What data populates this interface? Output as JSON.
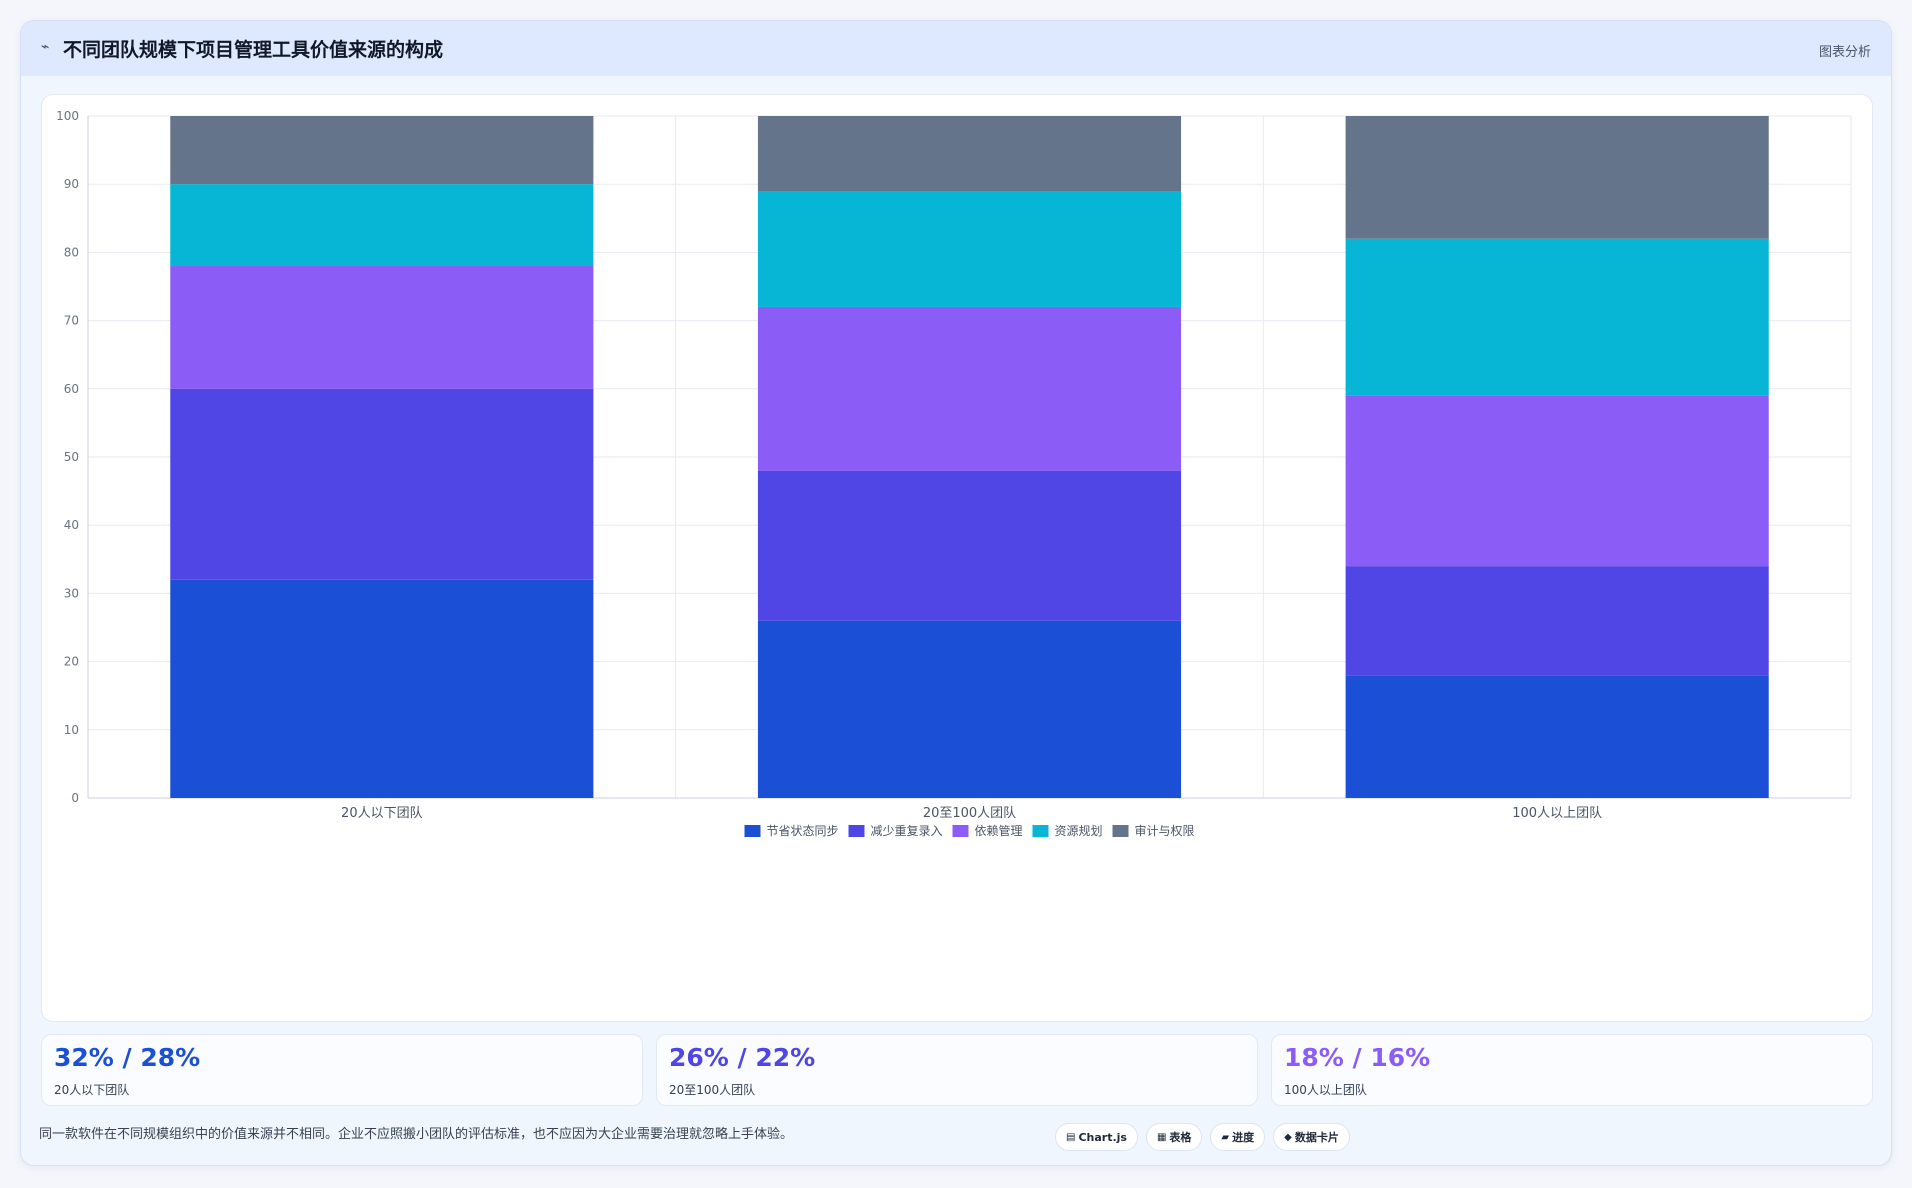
{
  "header": {
    "icon": "trend-line-icon",
    "icon_glyph": "⌁",
    "title": "不同团队规模下项目管理工具价值来源的构成",
    "tag": "图表分析"
  },
  "chart_data": {
    "type": "bar",
    "stacked": true,
    "categories": [
      "20人以下团队",
      "20至100人团队",
      "100人以上团队"
    ],
    "series": [
      {
        "name": "节省状态同步",
        "color": "#1b4fd6",
        "values": [
          32,
          26,
          18
        ]
      },
      {
        "name": "减少重复录入",
        "color": "#4f46e5",
        "values": [
          28,
          22,
          16
        ]
      },
      {
        "name": "依赖管理",
        "color": "#8b5cf6",
        "values": [
          18,
          24,
          25
        ]
      },
      {
        "name": "资源规划",
        "color": "#06b6d4",
        "values": [
          12,
          17,
          23
        ]
      },
      {
        "name": "审计与权限",
        "color": "#64748b",
        "values": [
          10,
          11,
          18
        ]
      }
    ],
    "ylim": [
      0,
      100
    ],
    "yticks": [
      0,
      10,
      20,
      30,
      40,
      50,
      60,
      70,
      80,
      90,
      100
    ],
    "grid": true,
    "legend_position": "bottom"
  },
  "stats": [
    {
      "value": "32% / 28%",
      "label": "20人以下团队",
      "color": "#1b4fd6"
    },
    {
      "value": "26% / 22%",
      "label": "20至100人团队",
      "color": "#4f46e5"
    },
    {
      "value": "18% / 16%",
      "label": "100人以上团队",
      "color": "#8b5cf6"
    }
  ],
  "footer": {
    "note": "同一款软件在不同规模组织中的价值来源并不相同。企业不应照搬小团队的评估标准，也不应因为大企业需要治理就忽略上手体验。",
    "chips": [
      {
        "icon": "chart-icon",
        "glyph": "▤",
        "label": "Chart.js"
      },
      {
        "icon": "table-icon",
        "glyph": "▦",
        "label": "表格"
      },
      {
        "icon": "progress-icon",
        "glyph": "▰",
        "label": "进度"
      },
      {
        "icon": "card-icon",
        "glyph": "◆",
        "label": "数据卡片"
      }
    ]
  }
}
